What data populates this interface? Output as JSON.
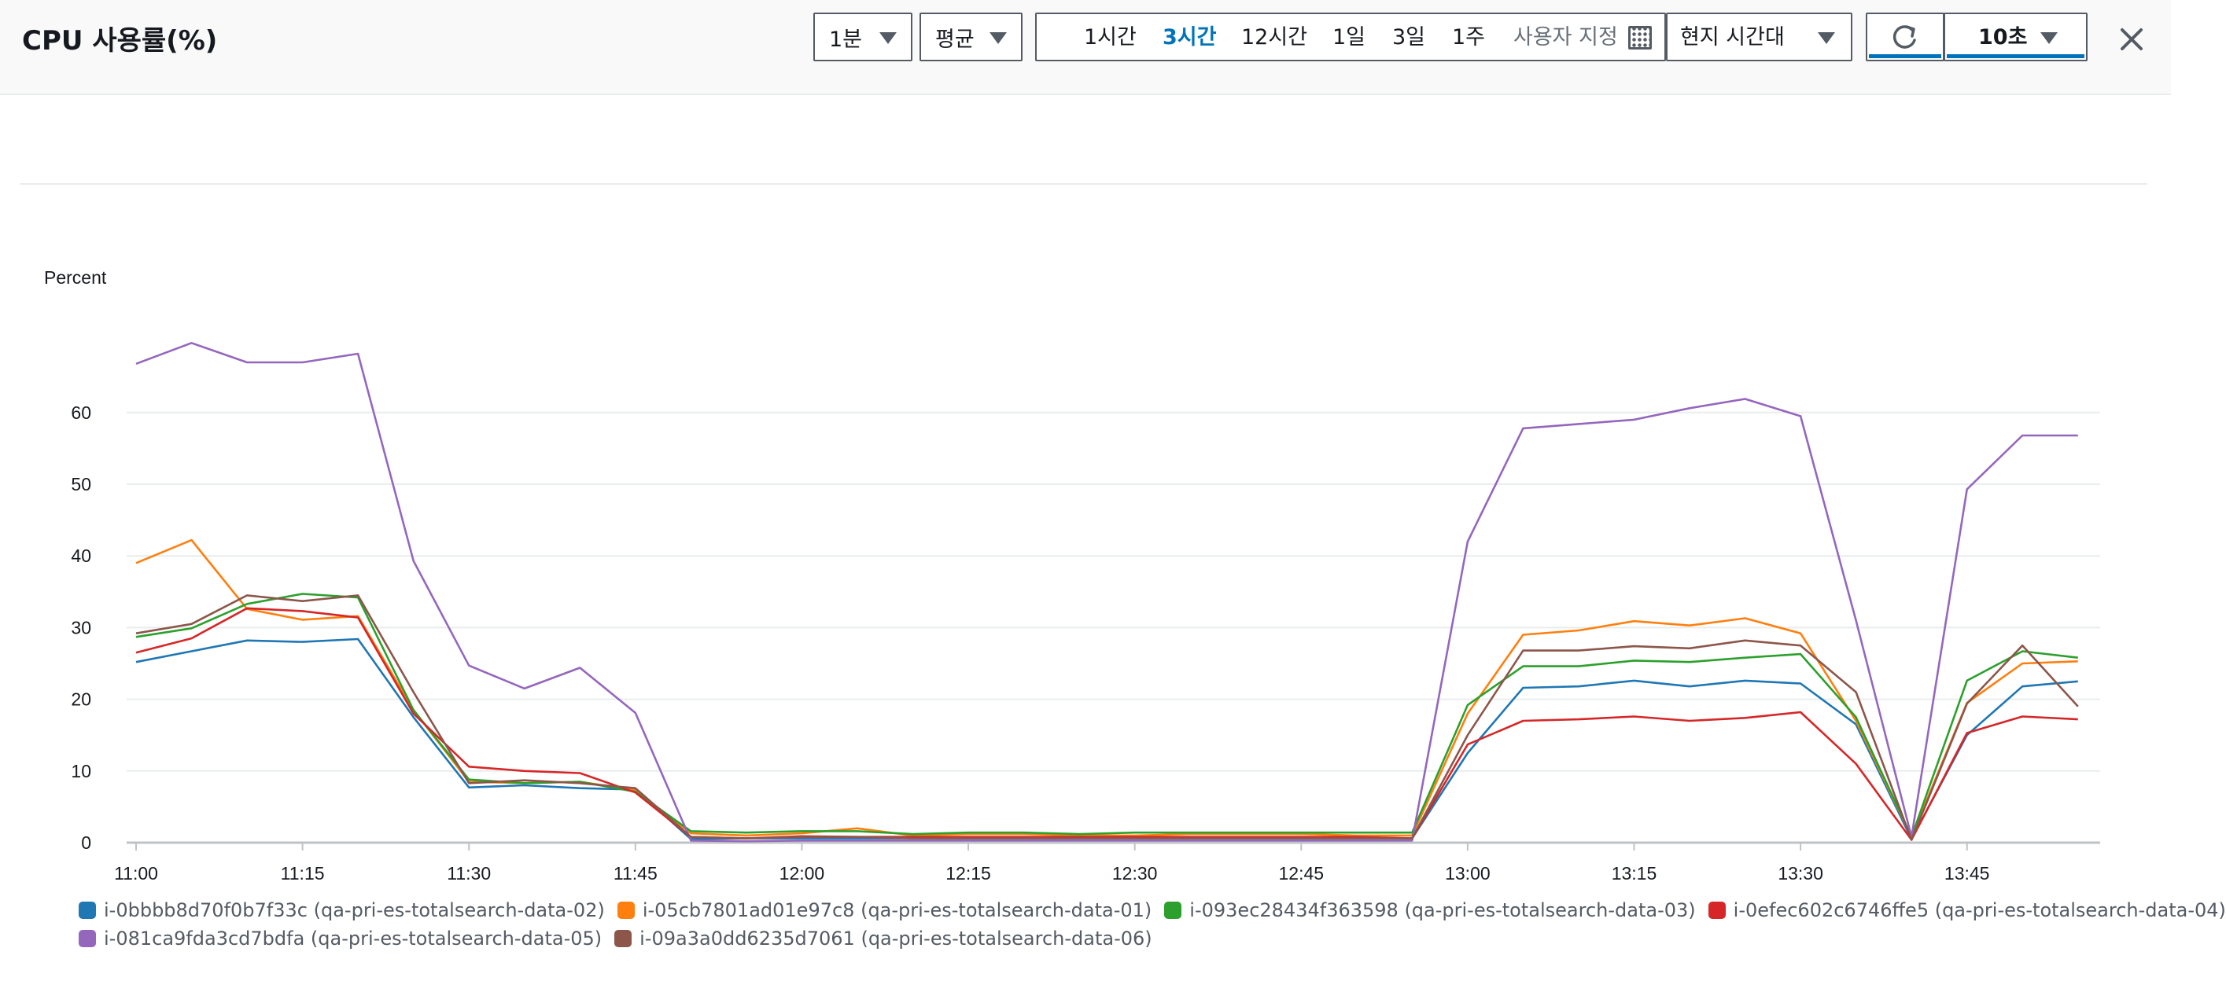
{
  "header": {
    "title": "CPU 사용률(%)",
    "period": "1분",
    "statistic": "평균",
    "ranges": [
      "1시간",
      "3시간",
      "12시간",
      "1일",
      "3일",
      "1주"
    ],
    "active_range": "3시간",
    "custom_label": "사용자 지정",
    "timezone": "현지 시간대",
    "refresh_interval": "10초"
  },
  "chart_data": {
    "type": "line",
    "ylabel": "Percent",
    "ylim": [
      0,
      75
    ],
    "yticks": [
      0,
      10,
      20,
      30,
      40,
      50,
      60
    ],
    "x": [
      "11:00",
      "11:05",
      "11:10",
      "11:15",
      "11:20",
      "11:25",
      "11:30",
      "11:35",
      "11:40",
      "11:45",
      "11:50",
      "11:55",
      "12:00",
      "12:05",
      "12:10",
      "12:15",
      "12:20",
      "12:25",
      "12:30",
      "12:35",
      "12:40",
      "12:45",
      "12:50",
      "12:55",
      "13:00",
      "13:05",
      "13:10",
      "13:15",
      "13:20",
      "13:25",
      "13:30",
      "13:35",
      "13:40",
      "13:45",
      "13:50",
      "13:55"
    ],
    "xticks": [
      "11:00",
      "11:15",
      "11:30",
      "11:45",
      "12:00",
      "12:15",
      "12:30",
      "12:45",
      "13:00",
      "13:15",
      "13:30",
      "13:45"
    ],
    "grid": true,
    "legend_position": "bottom",
    "series": [
      {
        "name": "i-0bbbb8d70f0b7f33c (qa-pri-es-totalsearch-data-02)",
        "color": "#1f77b4",
        "values": [
          25.2,
          26.7,
          28.2,
          28,
          28.4,
          17.5,
          7.7,
          8,
          7.6,
          7.4,
          0.5,
          0.6,
          0.6,
          0.6,
          0.6,
          0.6,
          0.6,
          0.6,
          0.6,
          0.6,
          0.6,
          0.6,
          0.6,
          0.6,
          12.5,
          21.6,
          21.8,
          22.6,
          21.8,
          22.6,
          22.2,
          16.5,
          0.5,
          15,
          21.8,
          22.5
        ]
      },
      {
        "name": "i-05cb7801ad01e97c8 (qa-pri-es-totalsearch-data-01)",
        "color": "#ff7f0e",
        "values": [
          39,
          42.2,
          32.6,
          31.1,
          31.6,
          18.5,
          8.5,
          8.3,
          8.5,
          7.3,
          1.3,
          1,
          1.3,
          2,
          1,
          1.2,
          1.2,
          1,
          1,
          1.2,
          1.2,
          1.2,
          1,
          1,
          18,
          29,
          29.6,
          30.9,
          30.3,
          31.3,
          29.2,
          17,
          0.8,
          19.5,
          25,
          25.3
        ]
      },
      {
        "name": "i-093ec28434f363598 (qa-pri-es-totalsearch-data-03)",
        "color": "#2ca02c",
        "values": [
          28.7,
          29.9,
          33.3,
          34.7,
          34.2,
          18.5,
          8.8,
          8.3,
          8.5,
          7.1,
          1.6,
          1.4,
          1.6,
          1.6,
          1.2,
          1.4,
          1.4,
          1.2,
          1.4,
          1.4,
          1.4,
          1.4,
          1.4,
          1.4,
          19.2,
          24.6,
          24.6,
          25.4,
          25.2,
          25.8,
          26.3,
          17.5,
          0.8,
          22.6,
          26.7,
          25.8
        ]
      },
      {
        "name": "i-0efec602c6746ffe5 (qa-pri-es-totalsearch-data-04)",
        "color": "#d62728",
        "values": [
          26.5,
          28.5,
          32.7,
          32.3,
          31.4,
          18,
          10.6,
          10,
          9.7,
          7,
          0.8,
          0.6,
          0.9,
          0.8,
          0.8,
          0.8,
          0.8,
          0.8,
          0.8,
          0.8,
          0.8,
          0.8,
          0.8,
          0.6,
          13.7,
          17,
          17.2,
          17.6,
          17,
          17.4,
          18.2,
          11,
          0.4,
          15.3,
          17.6,
          17.2
        ]
      },
      {
        "name": "i-081ca9fda3cd7bdfa (qa-pri-es-totalsearch-data-05)",
        "color": "#9467bd",
        "values": [
          66.8,
          69.7,
          67,
          67,
          68.2,
          39.3,
          24.7,
          21.5,
          24.4,
          18.1,
          0.3,
          0.2,
          0.3,
          0.3,
          0.3,
          0.3,
          0.3,
          0.3,
          0.3,
          0.3,
          0.3,
          0.3,
          0.3,
          0.3,
          42,
          57.8,
          58.4,
          59,
          60.6,
          61.9,
          59.5,
          31,
          0.8,
          49.3,
          56.8,
          56.8
        ]
      },
      {
        "name": "i-09a3a0dd6235d7061 (qa-pri-es-totalsearch-data-06)",
        "color": "#8c564b",
        "values": [
          29.2,
          30.5,
          34.5,
          33.7,
          34.5,
          21,
          8.3,
          8.7,
          8.3,
          7.6,
          0.8,
          0.6,
          0.8,
          0.8,
          0.6,
          0.6,
          0.6,
          0.6,
          0.6,
          0.6,
          0.6,
          0.6,
          0.6,
          0.6,
          15,
          26.8,
          26.8,
          27.4,
          27.1,
          28.2,
          27.5,
          21,
          0.4,
          19.4,
          27.5,
          19
        ]
      }
    ]
  }
}
